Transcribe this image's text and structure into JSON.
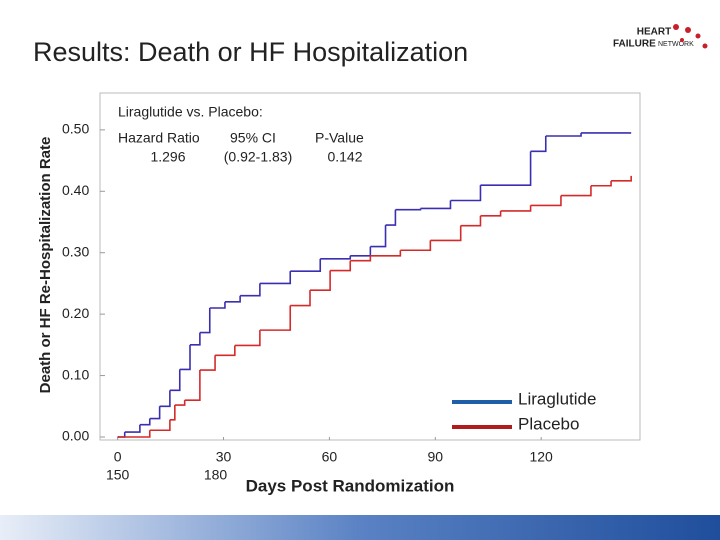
{
  "chart_data": {
    "type": "line",
    "title": "Results: Death or HF Hospitalization",
    "ylabel": "Death or HF Re-Hospitalization Rate",
    "xlabel": "Days Post Randomization",
    "xlim": [
      -5,
      148
    ],
    "ylim": [
      0,
      0.56
    ],
    "xticks": [
      0,
      30,
      60,
      90,
      120
    ],
    "x_extra_labels": [
      "150",
      "180"
    ],
    "yticks": [
      {
        "value": 0,
        "label": "0.00"
      },
      {
        "value": 0.1,
        "label": "0.10"
      },
      {
        "value": 0.2,
        "label": "0.20"
      },
      {
        "value": 0.3,
        "label": "0.30"
      },
      {
        "value": 0.4,
        "label": "0.40"
      },
      {
        "value": 0.5,
        "label": "0.50"
      }
    ],
    "step": true,
    "legend": "lower right",
    "series": [
      {
        "name": "Liraglutide",
        "color": "#3a2fb0",
        "legend_color": "#1f5fa8",
        "x": [
          0,
          2,
          6.3,
          9.1,
          11.9,
          14.8,
          17.6,
          20.5,
          23.3,
          26.1,
          30.4,
          34.7,
          40.3,
          48.9,
          57.4,
          65.9,
          71.6,
          75.9,
          78.7,
          85.8,
          94.3,
          102.8,
          117.0,
          121.3,
          131.3,
          145.5
        ],
        "values": [
          0,
          0.008,
          0.02,
          0.03,
          0.05,
          0.076,
          0.11,
          0.15,
          0.17,
          0.21,
          0.22,
          0.23,
          0.25,
          0.27,
          0.29,
          0.295,
          0.31,
          0.345,
          0.37,
          0.372,
          0.385,
          0.41,
          0.465,
          0.49,
          0.495,
          0.495
        ]
      },
      {
        "name": "Placebo",
        "color": "#d42a2a",
        "legend_color": "#b01c1c",
        "x": [
          0,
          9.1,
          14.8,
          16.2,
          19.0,
          23.3,
          27.6,
          33.2,
          40.3,
          48.9,
          54.5,
          60.2,
          65.9,
          71.6,
          80.1,
          88.6,
          97.2,
          102.8,
          108.5,
          117.0,
          125.6,
          134.1,
          139.8,
          145.5
        ],
        "values": [
          0,
          0.011,
          0.028,
          0.052,
          0.06,
          0.109,
          0.133,
          0.149,
          0.174,
          0.214,
          0.239,
          0.271,
          0.287,
          0.295,
          0.304,
          0.32,
          0.344,
          0.36,
          0.368,
          0.377,
          0.393,
          0.409,
          0.417,
          0.425
        ]
      }
    ],
    "annotation": {
      "heading": "Liraglutide vs. Placebo:",
      "columns": [
        "Hazard Ratio",
        "95% CI",
        "P-Value"
      ],
      "values": [
        "1.296",
        "(0.92-1.83)",
        "0.142"
      ]
    }
  },
  "logo": {
    "line1": "HEART",
    "line2": "FAILURE",
    "line3": "NETWORK"
  }
}
